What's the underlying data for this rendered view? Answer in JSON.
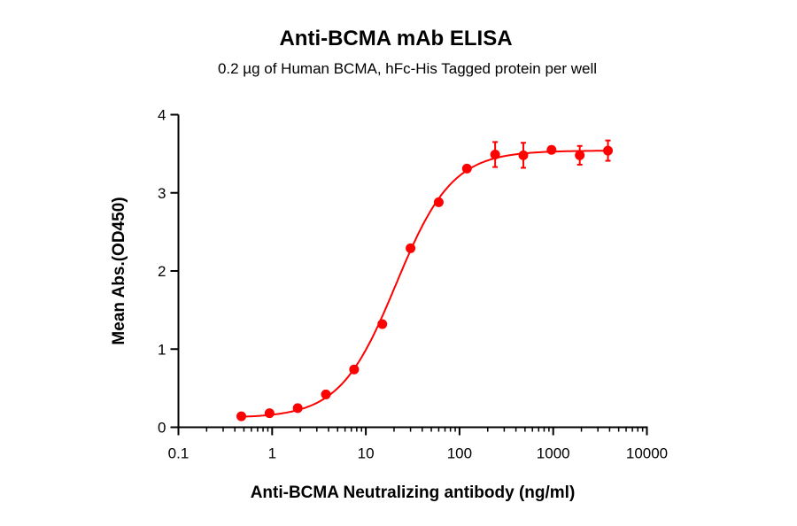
{
  "chart_data": {
    "type": "scatter",
    "title": "Anti-BCMA mAb ELISA",
    "subtitle": "0.2 µg of Human BCMA, hFc-His Tagged protein per well",
    "xlabel": "Anti-BCMA Neutralizing antibody (ng/ml)",
    "ylabel": "Mean Abs.(OD450)",
    "x_scale": "log",
    "xlim": [
      0.1,
      10000
    ],
    "ylim": [
      0,
      4
    ],
    "x_ticks": [
      "0.1",
      "1",
      "10",
      "100",
      "1000",
      "10000"
    ],
    "y_ticks": [
      "0",
      "1",
      "2",
      "3",
      "4"
    ],
    "grid": false,
    "color": "#ff0000",
    "fit_curve": "sigmoidal",
    "points": {
      "x": [
        0.469,
        0.938,
        1.875,
        3.75,
        7.5,
        15,
        30,
        60,
        120,
        240,
        480,
        960,
        1920,
        3840
      ],
      "y": [
        0.14,
        0.18,
        0.245,
        0.42,
        0.74,
        1.32,
        2.29,
        2.88,
        3.31,
        3.49,
        3.48,
        3.55,
        3.48,
        3.54
      ],
      "error": [
        0,
        0,
        0,
        0,
        0,
        0.03,
        0,
        0,
        0,
        0.16,
        0.16,
        0,
        0.12,
        0.13
      ]
    }
  }
}
